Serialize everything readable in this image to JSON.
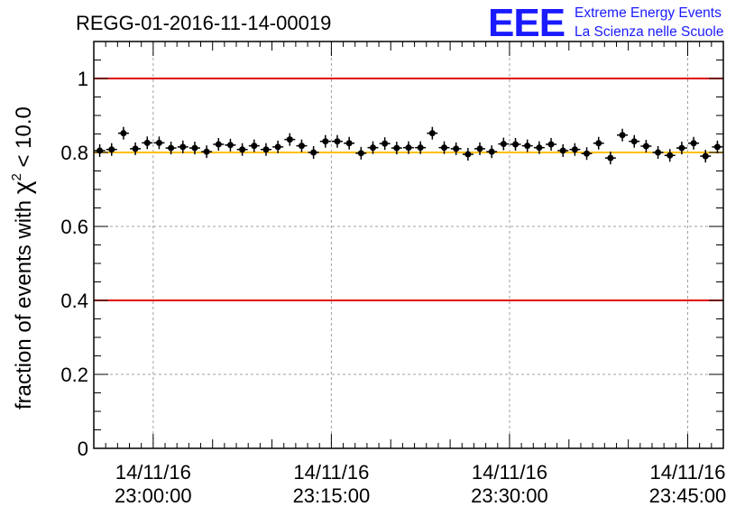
{
  "chart_data": {
    "type": "scatter",
    "title": "REGG-01-2016-11-14-00019",
    "ylabel_main": "fraction of events with ",
    "ylabel_chi": "χ",
    "ylabel_sup": "2",
    "ylabel_tail": " < 10.0",
    "xlabel": "",
    "ylim": [
      0,
      1.1
    ],
    "x_time_range_minutes": [
      -5,
      48
    ],
    "x_ticks": [
      {
        "minutes": 0,
        "date": "14/11/16",
        "time": "23:00:00"
      },
      {
        "minutes": 15,
        "date": "14/11/16",
        "time": "23:15:00"
      },
      {
        "minutes": 30,
        "date": "14/11/16",
        "time": "23:30:00"
      },
      {
        "minutes": 45,
        "date": "14/11/16",
        "time": "23:45:00"
      }
    ],
    "y_ticks": [
      {
        "value": 0,
        "label": "0"
      },
      {
        "value": 0.2,
        "label": "0.2"
      },
      {
        "value": 0.4,
        "label": "0.4"
      },
      {
        "value": 0.6,
        "label": "0.6"
      },
      {
        "value": 0.8,
        "label": "0.8"
      },
      {
        "value": 1.0,
        "label": "1"
      }
    ],
    "grid": true,
    "reference_lines": [
      {
        "value": 1.0,
        "color": "#e00000",
        "name": "upper-limit"
      },
      {
        "value": 0.4,
        "color": "#e00000",
        "name": "lower-limit"
      },
      {
        "value": 0.8,
        "color": "#ffc000",
        "name": "nominal"
      }
    ],
    "series": [
      {
        "name": "fraction",
        "color": "#000000",
        "x": [
          -4.5,
          -3.5,
          -2.5,
          -1.5,
          -0.5,
          0.5,
          1.5,
          2.5,
          3.5,
          4.5,
          5.5,
          6.5,
          7.5,
          8.5,
          9.5,
          10.5,
          11.5,
          12.5,
          13.5,
          14.5,
          15.5,
          16.5,
          17.5,
          18.5,
          19.5,
          20.5,
          21.5,
          22.5,
          23.5,
          24.5,
          25.5,
          26.5,
          27.5,
          28.5,
          29.5,
          30.5,
          31.5,
          32.5,
          33.5,
          34.5,
          35.5,
          36.5,
          37.5,
          38.5,
          39.5,
          40.5,
          41.5,
          42.5,
          43.5,
          44.5,
          45.5,
          46.5,
          47.5
        ],
        "y": [
          0.805,
          0.808,
          0.852,
          0.81,
          0.826,
          0.826,
          0.812,
          0.815,
          0.812,
          0.802,
          0.822,
          0.82,
          0.808,
          0.818,
          0.808,
          0.815,
          0.835,
          0.818,
          0.8,
          0.83,
          0.83,
          0.825,
          0.798,
          0.813,
          0.824,
          0.812,
          0.813,
          0.813,
          0.852,
          0.813,
          0.81,
          0.795,
          0.81,
          0.802,
          0.823,
          0.822,
          0.818,
          0.813,
          0.822,
          0.805,
          0.808,
          0.797,
          0.825,
          0.785,
          0.847,
          0.83,
          0.817,
          0.8,
          0.792,
          0.812,
          0.825,
          0.79,
          0.815
        ]
      }
    ]
  },
  "logo": {
    "mark": "EEE",
    "line1": "Extreme Energy Events",
    "line2": "La Scienza nelle Scuole"
  }
}
